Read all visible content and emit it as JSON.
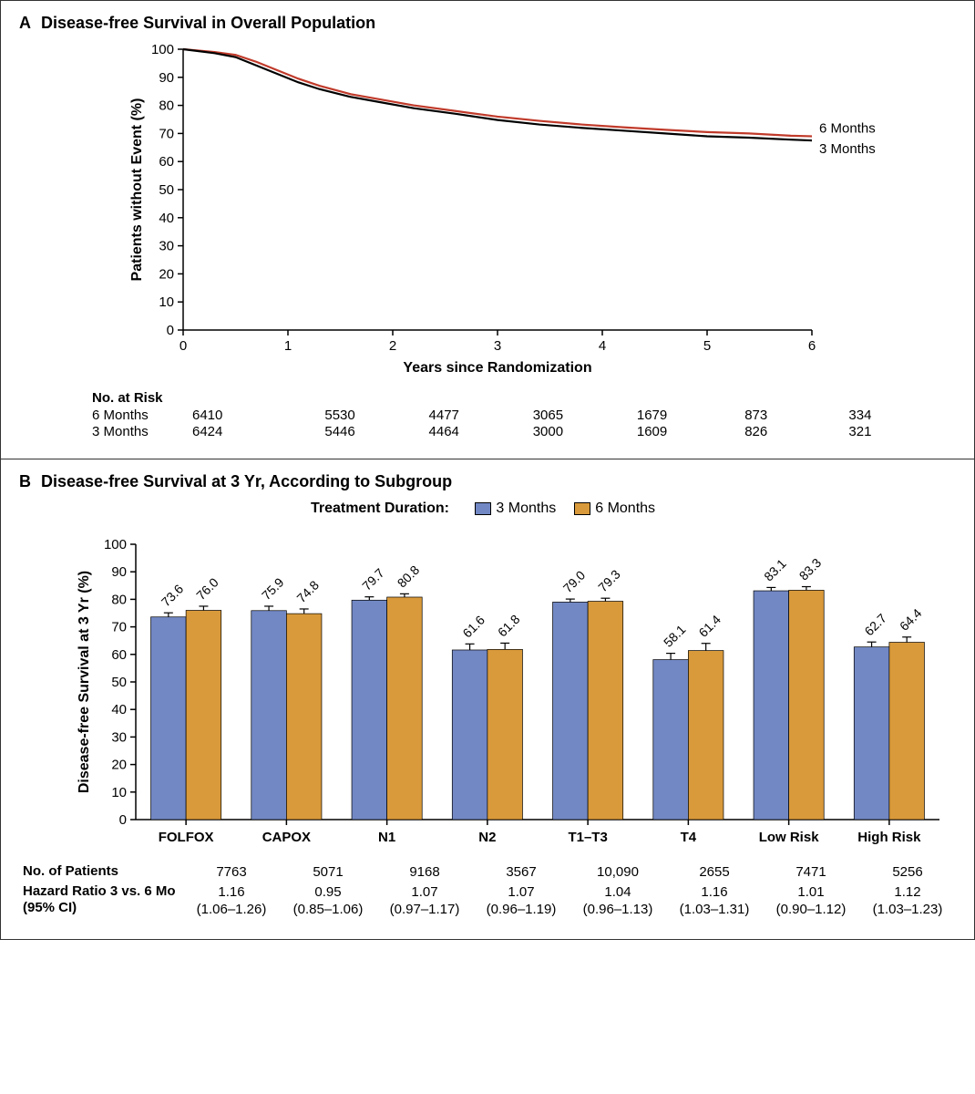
{
  "colors": {
    "series_6mo": "#c03a2a",
    "series_3mo": "#000000",
    "bar_3mo": "#7288c4",
    "bar_6mo": "#d99a3b",
    "background": "#ffffff"
  },
  "panelA": {
    "letter": "A",
    "title": "Disease-free Survival in Overall Population",
    "ylabel": "Patients without Event (%)",
    "xlabel": "Years since Randomization",
    "ylim": [
      0,
      100
    ],
    "ytick_step": 10,
    "xlim": [
      0,
      6
    ],
    "xtick_step": 1,
    "curve_labels": {
      "6mo": "6 Months",
      "3mo": "3 Months"
    },
    "curve_6mo_points": [
      [
        0,
        100
      ],
      [
        0.3,
        99
      ],
      [
        0.5,
        98
      ],
      [
        0.7,
        95.5
      ],
      [
        0.9,
        92.5
      ],
      [
        1.1,
        89.5
      ],
      [
        1.3,
        87
      ],
      [
        1.6,
        84
      ],
      [
        1.9,
        82
      ],
      [
        2.2,
        80
      ],
      [
        2.6,
        78
      ],
      [
        3.0,
        76
      ],
      [
        3.4,
        74.5
      ],
      [
        3.8,
        73.2
      ],
      [
        4.2,
        72.2
      ],
      [
        4.6,
        71.3
      ],
      [
        5.0,
        70.5
      ],
      [
        5.4,
        70
      ],
      [
        5.8,
        69.2
      ],
      [
        6.0,
        69
      ]
    ],
    "curve_3mo_points": [
      [
        0,
        100
      ],
      [
        0.3,
        98.6
      ],
      [
        0.5,
        97.2
      ],
      [
        0.7,
        94.2
      ],
      [
        0.9,
        91.2
      ],
      [
        1.1,
        88.2
      ],
      [
        1.3,
        85.8
      ],
      [
        1.6,
        83
      ],
      [
        1.9,
        81
      ],
      [
        2.2,
        79
      ],
      [
        2.6,
        77
      ],
      [
        3.0,
        74.8
      ],
      [
        3.4,
        73.2
      ],
      [
        3.8,
        72
      ],
      [
        4.2,
        71
      ],
      [
        4.6,
        70
      ],
      [
        5.0,
        69
      ],
      [
        5.4,
        68.5
      ],
      [
        5.8,
        67.8
      ],
      [
        6.0,
        67.5
      ]
    ],
    "risk_header": "No. at Risk",
    "risk_rows": [
      {
        "label": "6 Months",
        "values": [
          6410,
          5530,
          4477,
          3065,
          1679,
          873,
          334
        ]
      },
      {
        "label": "3 Months",
        "values": [
          6424,
          5446,
          4464,
          3000,
          1609,
          826,
          321
        ]
      }
    ]
  },
  "panelB": {
    "letter": "B",
    "title": "Disease-free Survival at 3 Yr, According to Subgroup",
    "legend_title": "Treatment Duration:",
    "legend_items": [
      {
        "label": "3 Months",
        "color_key": "bar_3mo"
      },
      {
        "label": "6 Months",
        "color_key": "bar_6mo"
      }
    ],
    "ylabel": "Disease-free Survival at 3 Yr (%)",
    "ylim": [
      0,
      100
    ],
    "ytick_step": 10,
    "categories": [
      "FOLFOX",
      "CAPOX",
      "N1",
      "N2",
      "T1–T3",
      "T4",
      "Low Risk",
      "High Risk"
    ],
    "series_3mo": [
      73.6,
      75.9,
      79.7,
      61.6,
      79.0,
      58.1,
      83.1,
      62.7
    ],
    "series_6mo": [
      76.0,
      74.8,
      80.8,
      61.8,
      79.3,
      61.4,
      83.3,
      64.4
    ],
    "error_3mo": [
      1.5,
      1.6,
      1.2,
      2.2,
      1.1,
      2.3,
      1.2,
      1.8
    ],
    "error_6mo": [
      1.5,
      1.7,
      1.2,
      2.3,
      1.1,
      2.6,
      1.3,
      1.9
    ],
    "bar_width": 0.35,
    "footer": {
      "n_label": "No. of Patients",
      "n_values": [
        7763,
        5071,
        9168,
        3567,
        "10,090",
        2655,
        7471,
        5256
      ],
      "hr_label": "Hazard Ratio 3 vs. 6 Mo",
      "ci_label": "(95% CI)",
      "hr_values": [
        "1.16",
        "0.95",
        "1.07",
        "1.07",
        "1.04",
        "1.16",
        "1.01",
        "1.12"
      ],
      "ci_values": [
        "(1.06–1.26)",
        "(0.85–1.06)",
        "(0.97–1.17)",
        "(0.96–1.19)",
        "(0.96–1.13)",
        "(1.03–1.31)",
        "(0.90–1.12)",
        "(1.03–1.23)"
      ]
    }
  }
}
